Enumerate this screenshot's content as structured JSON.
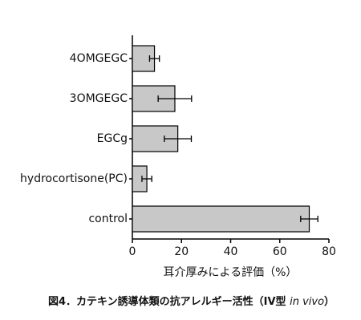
{
  "chart_data": {
    "type": "hbar",
    "categories": [
      "4OMGEGC",
      "3OMGEGC",
      "EGCg",
      "hydrocortisone(PC)",
      "control"
    ],
    "values": [
      9,
      17.3,
      18.5,
      5.9,
      72
    ],
    "errors": [
      2,
      6.8,
      5.5,
      2,
      3.5
    ],
    "color": "#c8c8c8",
    "xlim": [
      0,
      80
    ],
    "xticks": [
      0,
      20,
      40,
      60,
      80
    ],
    "xlabel": "耳介厚みによる評価（%）",
    "caption": [
      "図4．カテキン誘導体類の抗アレルギー活性（IV型 ",
      "in vivo",
      "）"
    ]
  }
}
